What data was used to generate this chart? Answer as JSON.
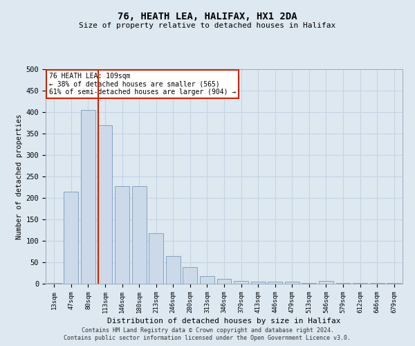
{
  "title1": "76, HEATH LEA, HALIFAX, HX1 2DA",
  "title2": "Size of property relative to detached houses in Halifax",
  "xlabel": "Distribution of detached houses by size in Halifax",
  "ylabel": "Number of detached properties",
  "categories": [
    "13sqm",
    "47sqm",
    "80sqm",
    "113sqm",
    "146sqm",
    "180sqm",
    "213sqm",
    "246sqm",
    "280sqm",
    "313sqm",
    "346sqm",
    "379sqm",
    "413sqm",
    "446sqm",
    "479sqm",
    "513sqm",
    "546sqm",
    "579sqm",
    "612sqm",
    "646sqm",
    "679sqm"
  ],
  "values": [
    2,
    215,
    405,
    370,
    228,
    228,
    118,
    65,
    38,
    17,
    12,
    6,
    5,
    5,
    5,
    2,
    7,
    2,
    1,
    1,
    1
  ],
  "bar_color": "#ccd9e8",
  "bar_edge_color": "#7799bb",
  "vline_color": "#cc2200",
  "annotation_text": "76 HEATH LEA: 109sqm\n← 38% of detached houses are smaller (565)\n61% of semi-detached houses are larger (904) →",
  "annotation_box_color": "#ffffff",
  "annotation_box_edge": "#cc2200",
  "grid_color": "#c5d5e5",
  "bg_color": "#dde8f0",
  "plot_bg_color": "#dde8f0",
  "ylim": [
    0,
    500
  ],
  "yticks": [
    0,
    50,
    100,
    150,
    200,
    250,
    300,
    350,
    400,
    450,
    500
  ],
  "footer1": "Contains HM Land Registry data © Crown copyright and database right 2024.",
  "footer2": "Contains public sector information licensed under the Open Government Licence v3.0."
}
